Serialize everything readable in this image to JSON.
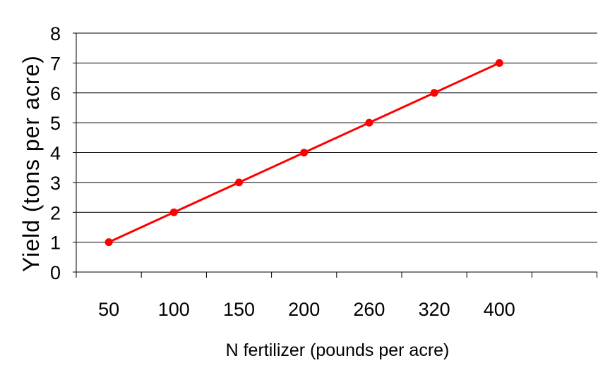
{
  "chart_data": {
    "type": "line",
    "title": "",
    "xlabel": "N fertilizer (pounds per acre)",
    "ylabel": "Yield (tons per acre)",
    "categories": [
      "50",
      "100",
      "150",
      "200",
      "260",
      "320",
      "400"
    ],
    "series": [
      {
        "values": [
          1,
          2,
          3,
          4,
          5,
          6,
          7
        ],
        "color": "#ff0000"
      }
    ],
    "ylim": [
      0,
      8
    ],
    "yticks": [
      "0",
      "1",
      "2",
      "3",
      "4",
      "5",
      "6",
      "7",
      "8"
    ],
    "grid": "horizontal",
    "legend": "none",
    "colors": {
      "line": "#ff0000",
      "marker": "#ff0000",
      "grid": "#000000",
      "axis": "#000000",
      "background": "#ffffff"
    }
  }
}
